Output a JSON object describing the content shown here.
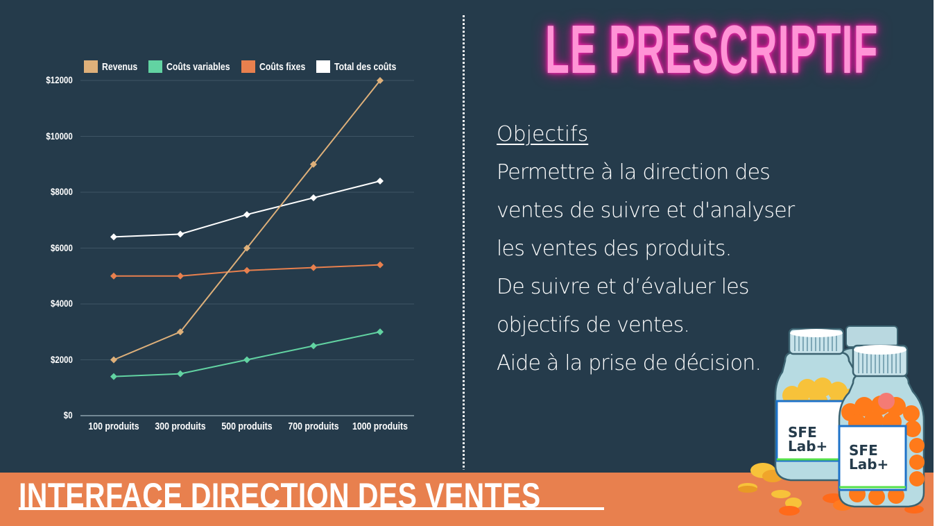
{
  "slide": {
    "title": "LE PRESCRIPTIF",
    "objectives": {
      "heading": "Objectifs",
      "lines": [
        "Permettre à la direction des",
        "ventes de suivre et d'analyser",
        "les ventes des produits.",
        "De suivre et d’évaluer les",
        "objectifs de ventes.",
        "Aide à la prise de décision."
      ]
    },
    "banner_title": "INTERFACE DIRECTION DES VENTES",
    "illustration": {
      "description": "pill-bottles",
      "label_line1": "SFE",
      "label_line2": "Lab+"
    },
    "colors": {
      "background": "#253b4b",
      "banner": "#e8804e",
      "title": "#ff94d6",
      "title_glow": "#e0189c"
    }
  },
  "chart_data": {
    "type": "line",
    "title": "",
    "xlabel": "",
    "ylabel": "",
    "categories": [
      "100 produits",
      "300 produits",
      "500 produits",
      "700 produits",
      "1000 produits"
    ],
    "yticks": [
      "$0",
      "$2000",
      "$4000",
      "$6000",
      "$8000",
      "$10000",
      "$12000"
    ],
    "ylim": [
      0,
      12000
    ],
    "grid": true,
    "legend_position": "top",
    "marker": "diamond",
    "series": [
      {
        "name": "Revenus",
        "color": "#deb07a",
        "values": [
          2000,
          3000,
          6000,
          9000,
          12000
        ]
      },
      {
        "name": "Coûts variables",
        "color": "#62d3a2",
        "values": [
          1400,
          1500,
          2000,
          2500,
          3000
        ]
      },
      {
        "name": "Coûts fixes",
        "color": "#e8804e",
        "values": [
          5000,
          5000,
          5200,
          5300,
          5400
        ]
      },
      {
        "name": "Total des coûts",
        "color": "#ffffff",
        "values": [
          6400,
          6500,
          7200,
          7800,
          8400
        ]
      }
    ]
  }
}
